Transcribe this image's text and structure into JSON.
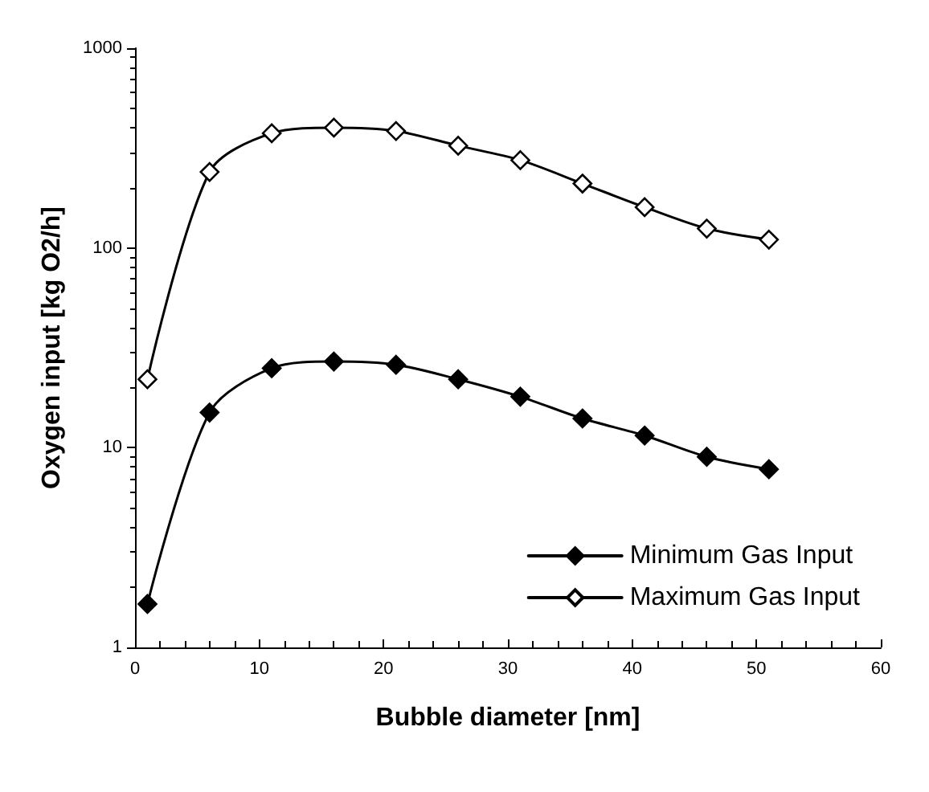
{
  "chart_data": {
    "type": "line",
    "xlabel": "Bubble diameter [nm]",
    "ylabel": "Oxygen input [kg O2/h]",
    "log": "y",
    "xlim": [
      0,
      60
    ],
    "xticks": [
      0,
      10,
      20,
      30,
      40,
      50,
      60
    ],
    "ylim": [
      1,
      1000
    ],
    "yticks": [
      1,
      10,
      100,
      1000
    ],
    "grid": false,
    "legend": "bottom right",
    "marker": "diamond",
    "line_style": "solid",
    "x": [
      1,
      6,
      11,
      16,
      21,
      26,
      31,
      36,
      41,
      46,
      51
    ],
    "series": [
      {
        "name": "Minimum Gas Input",
        "color": "#000000",
        "values": [
          1.65,
          15,
          25,
          27,
          26,
          22,
          18,
          14,
          11.5,
          9,
          7.8
        ]
      },
      {
        "name": "Maximum Gas Input",
        "color": "#000000",
        "values": [
          22,
          240,
          375,
          400,
          385,
          325,
          275,
          210,
          160,
          125,
          110
        ]
      }
    ]
  }
}
